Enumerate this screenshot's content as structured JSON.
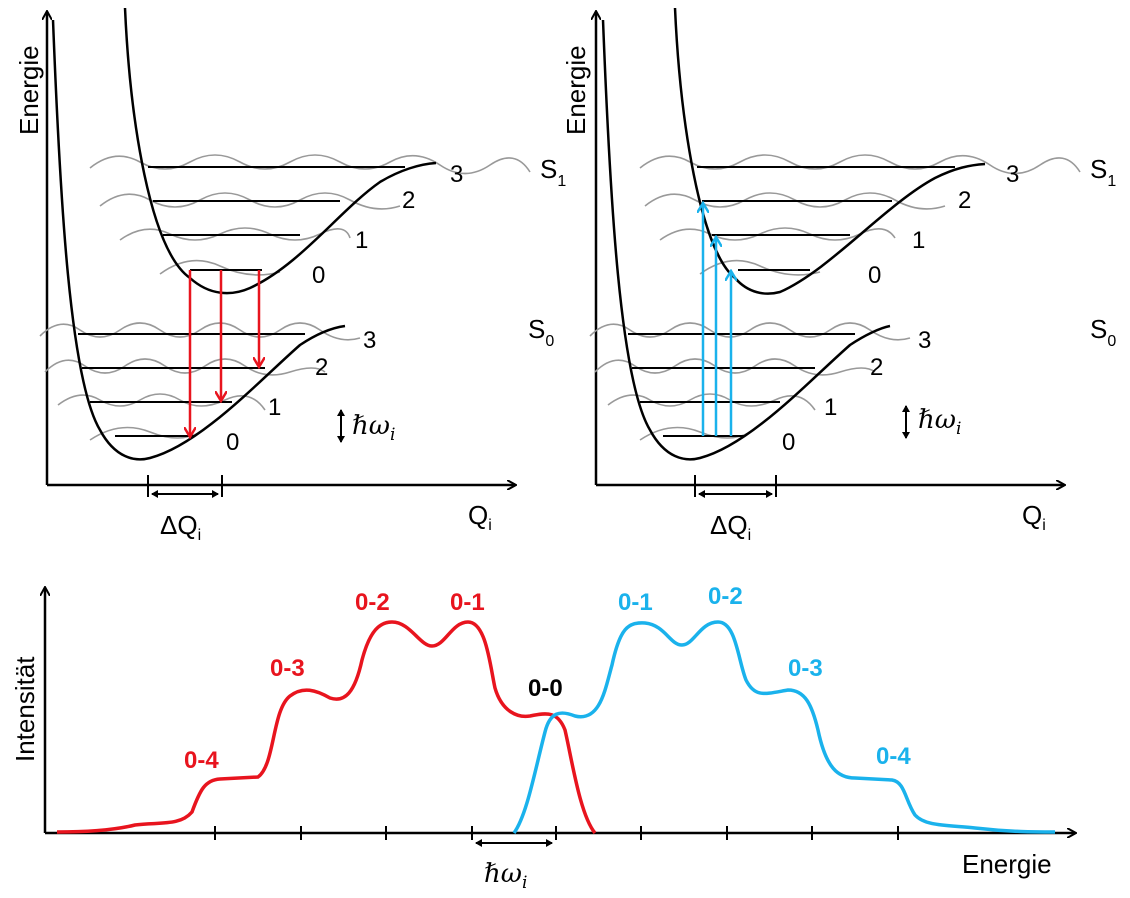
{
  "colors": {
    "emission": "#e8141e",
    "absorption": "#1ab2ec",
    "axis": "#000000",
    "wave": "#999999"
  },
  "top_left": {
    "y_axis_label": "Energie",
    "x_axis_label": "Q",
    "x_axis_sub": "i",
    "delta_label": "ΔQ",
    "delta_sub": "i",
    "state_excited": "S",
    "state_excited_sub": "1",
    "hbar_label": "ℏω",
    "hbar_sub": "i",
    "s1_levels": [
      "0",
      "1",
      "2",
      "3"
    ],
    "s0_levels": [
      "0",
      "1",
      "2",
      "3"
    ]
  },
  "top_right": {
    "y_axis_label": "Energie",
    "x_axis_label": "Q",
    "x_axis_sub": "i",
    "delta_label": "ΔQ",
    "delta_sub": "i",
    "state_excited": "S",
    "state_excited_sub": "1",
    "state_ground": "S",
    "state_ground_sub": "0",
    "hbar_label": "ℏω",
    "hbar_sub": "i",
    "s1_levels": [
      "0",
      "1",
      "2",
      "3"
    ],
    "s0_levels": [
      "0",
      "1",
      "2",
      "3"
    ]
  },
  "spectrum": {
    "y_axis_label": "Intensität",
    "x_axis_label": "Energie",
    "hbar_label": "ℏω",
    "hbar_sub": "i",
    "center_label": "0-0",
    "emission_labels": [
      "0-4",
      "0-3",
      "0-2",
      "0-1"
    ],
    "absorption_labels": [
      "0-1",
      "0-2",
      "0-3",
      "0-4"
    ]
  }
}
